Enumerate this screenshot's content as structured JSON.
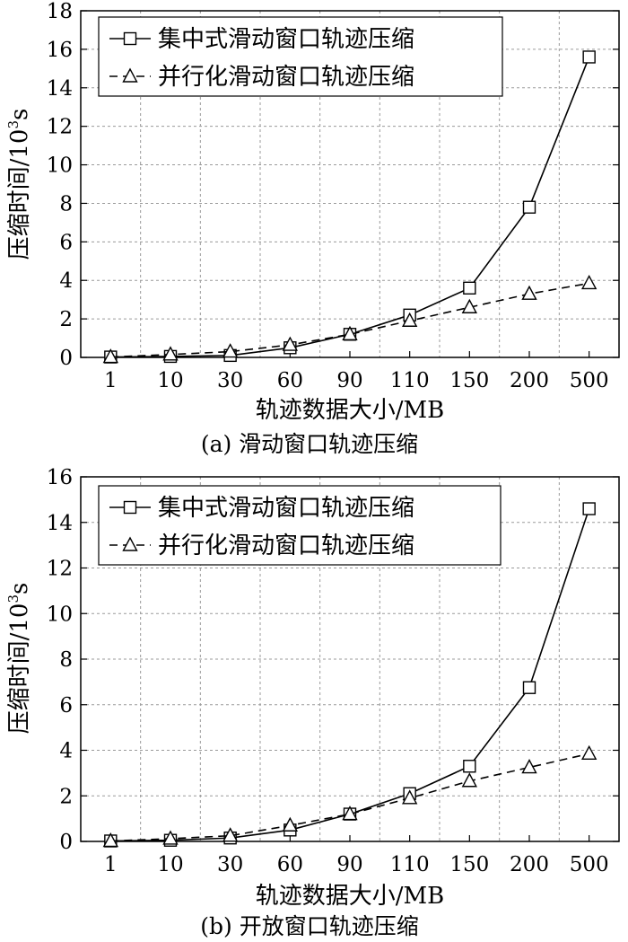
{
  "chart_data": [
    {
      "type": "line",
      "panel": "a",
      "caption": "(a) 滑动窗口轨迹压缩",
      "xlabel": "轨迹数据大小/MB",
      "ylabel_main": "压缩时间/10",
      "ylabel_sup": "3",
      "ylabel_unit": "s",
      "categories": [
        "1",
        "10",
        "30",
        "60",
        "90",
        "110",
        "150",
        "200",
        "500"
      ],
      "ylim": [
        0,
        18
      ],
      "yticks": [
        0,
        2,
        4,
        6,
        8,
        10,
        12,
        14,
        16,
        18
      ],
      "grid": true,
      "legend_position": "top-left",
      "series": [
        {
          "name": "集中式滑动窗口轨迹压缩",
          "marker": "square",
          "line": "solid",
          "values": [
            0.02,
            0.05,
            0.1,
            0.5,
            1.2,
            2.2,
            3.6,
            7.8,
            15.6
          ]
        },
        {
          "name": "并行化滑动窗口轨迹压缩",
          "marker": "triangle",
          "line": "dashed",
          "values": [
            0.02,
            0.15,
            0.3,
            0.65,
            1.2,
            1.9,
            2.6,
            3.3,
            3.85
          ]
        }
      ]
    },
    {
      "type": "line",
      "panel": "b",
      "caption": "(b) 开放窗口轨迹压缩",
      "xlabel": "轨迹数据大小/MB",
      "ylabel_main": "压缩时间/10",
      "ylabel_sup": "3",
      "ylabel_unit": "s",
      "categories": [
        "1",
        "10",
        "30",
        "60",
        "90",
        "110",
        "150",
        "200",
        "500"
      ],
      "ylim": [
        0,
        16
      ],
      "yticks": [
        0,
        2,
        4,
        6,
        8,
        10,
        12,
        14,
        16
      ],
      "grid": true,
      "legend_position": "top-left",
      "series": [
        {
          "name": "集中式滑动窗口轨迹压缩",
          "marker": "square",
          "line": "solid",
          "values": [
            0.02,
            0.05,
            0.15,
            0.5,
            1.2,
            2.1,
            3.3,
            6.75,
            14.6
          ]
        },
        {
          "name": "并行化滑动窗口轨迹压缩",
          "marker": "triangle",
          "line": "dashed",
          "values": [
            0.02,
            0.12,
            0.25,
            0.7,
            1.2,
            1.9,
            2.65,
            3.25,
            3.85
          ]
        }
      ]
    }
  ]
}
